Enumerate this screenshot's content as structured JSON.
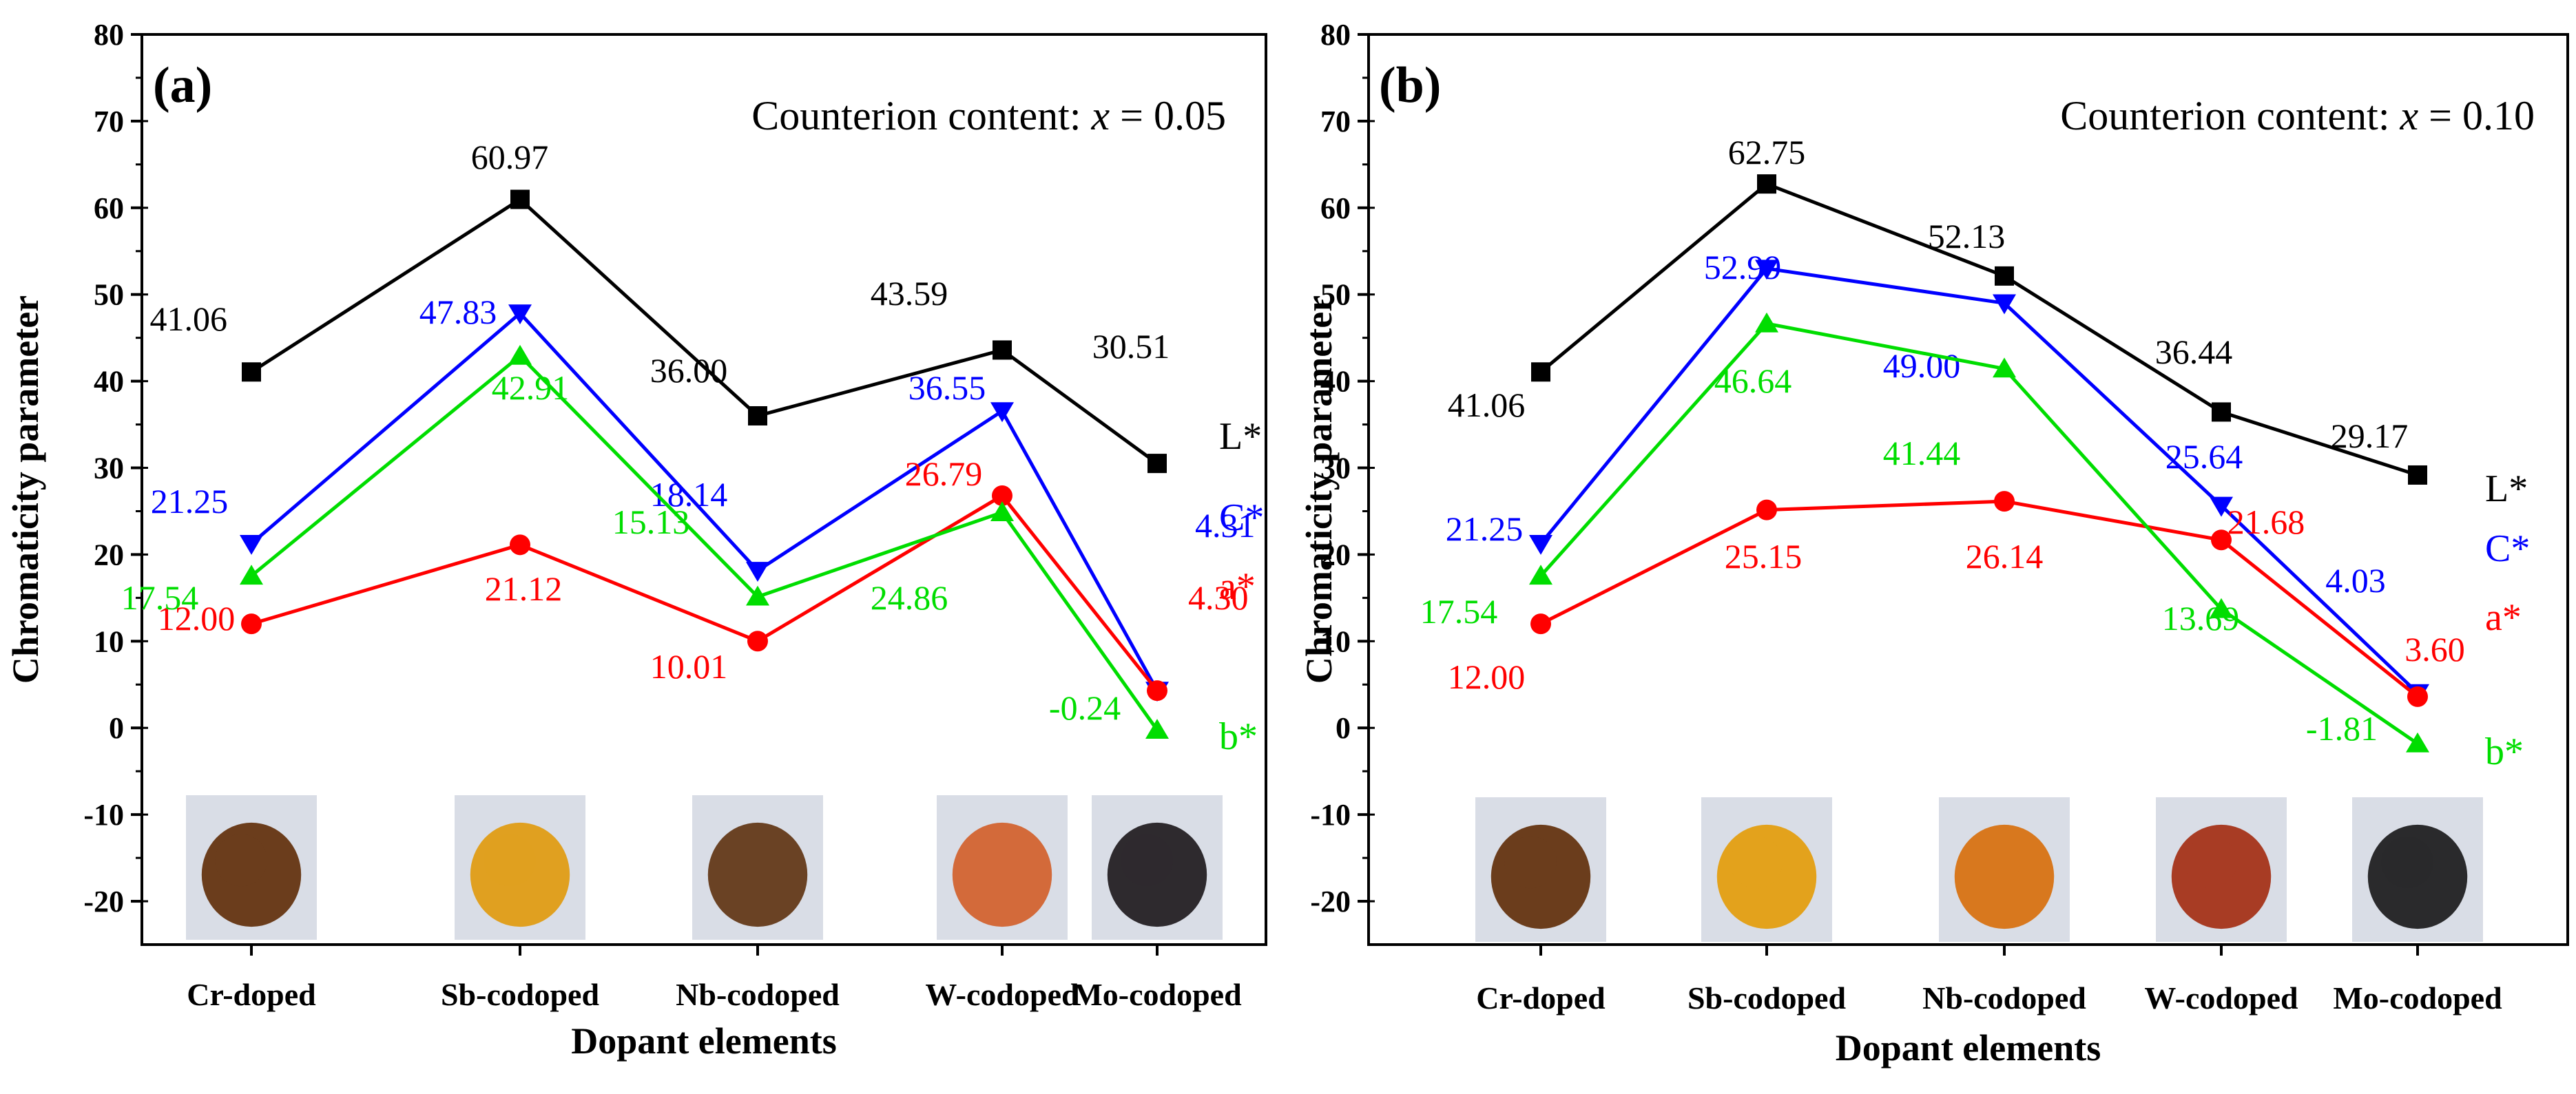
{
  "chart_data": [
    {
      "type": "line",
      "panel_label": "(a)",
      "annotation_prefix": "Counterion content: ",
      "annotation_var": "x",
      "annotation_suffix": " = 0.05",
      "ylabel": "Chromaticity parameter",
      "xlabel": "Dopant elements",
      "ylim": [
        -25,
        80
      ],
      "yticks": [
        -20,
        -10,
        0,
        10,
        20,
        30,
        40,
        50,
        60,
        70,
        80
      ],
      "categories": [
        "Cr-doped",
        "Sb-codoped",
        "Nb-codoped",
        "W-codoped",
        "Mo-codoped"
      ],
      "powder_colors": [
        "#6b3d1c",
        "#e0a020",
        "#6a4224",
        "#d36a3a",
        "#2e2a2e"
      ],
      "series": [
        {
          "name": "L*",
          "color": "#000000",
          "marker": "square",
          "values": [
            41.06,
            60.97,
            36.0,
            43.59,
            30.51
          ],
          "labels": [
            "41.06",
            "60.97",
            "36.00",
            "43.59",
            "30.51"
          ]
        },
        {
          "name": "C*",
          "color": "#0000ff",
          "marker": "triangle-down",
          "values": [
            21.25,
            47.83,
            18.14,
            36.55,
            4.31
          ],
          "labels": [
            "21.25",
            "47.83",
            "18.14",
            "36.55",
            "4.31"
          ]
        },
        {
          "name": "a*",
          "color": "#ff0000",
          "marker": "circle",
          "values": [
            12.0,
            21.12,
            10.01,
            26.79,
            4.3
          ],
          "labels": [
            "12.00",
            "21.12",
            "10.01",
            "26.79",
            "4.30"
          ]
        },
        {
          "name": "b*",
          "color": "#00dd00",
          "marker": "triangle-up",
          "values": [
            17.54,
            42.91,
            15.13,
            24.86,
            -0.24
          ],
          "labels": [
            "17.54",
            "42.91",
            "15.13",
            "24.86",
            "-0.24"
          ]
        }
      ]
    },
    {
      "type": "line",
      "panel_label": "(b)",
      "annotation_prefix": "Counterion content: ",
      "annotation_var": "x",
      "annotation_suffix": " = 0.10",
      "ylabel": "Chromaticity parameter",
      "xlabel": "Dopant elements",
      "ylim": [
        -25,
        80
      ],
      "yticks": [
        -20,
        -10,
        0,
        10,
        20,
        30,
        40,
        50,
        60,
        70,
        80
      ],
      "categories": [
        "Cr-doped",
        "Sb-codoped",
        "Nb-codoped",
        "W-codoped",
        "Mo-codoped"
      ],
      "powder_colors": [
        "#6b3d1c",
        "#e3a21c",
        "#d8781e",
        "#a83c24",
        "#2a2a2c"
      ],
      "series": [
        {
          "name": "L*",
          "color": "#000000",
          "marker": "square",
          "values": [
            41.06,
            62.75,
            52.13,
            36.44,
            29.17
          ],
          "labels": [
            "41.06",
            "62.75",
            "52.13",
            "36.44",
            "29.17"
          ]
        },
        {
          "name": "C*",
          "color": "#0000ff",
          "marker": "triangle-down",
          "values": [
            21.25,
            52.99,
            49.0,
            25.64,
            4.03
          ],
          "labels": [
            "21.25",
            "52.99",
            "49.00",
            "25.64",
            "4.03"
          ]
        },
        {
          "name": "a*",
          "color": "#ff0000",
          "marker": "circle",
          "values": [
            12.0,
            25.15,
            26.14,
            21.68,
            3.6
          ],
          "labels": [
            "12.00",
            "25.15",
            "26.14",
            "21.68",
            "3.60"
          ]
        },
        {
          "name": "b*",
          "color": "#00dd00",
          "marker": "triangle-up",
          "values": [
            17.54,
            46.64,
            41.44,
            13.69,
            -1.81
          ],
          "labels": [
            "17.54",
            "46.64",
            "41.44",
            "13.69",
            "-1.81"
          ]
        }
      ]
    }
  ]
}
